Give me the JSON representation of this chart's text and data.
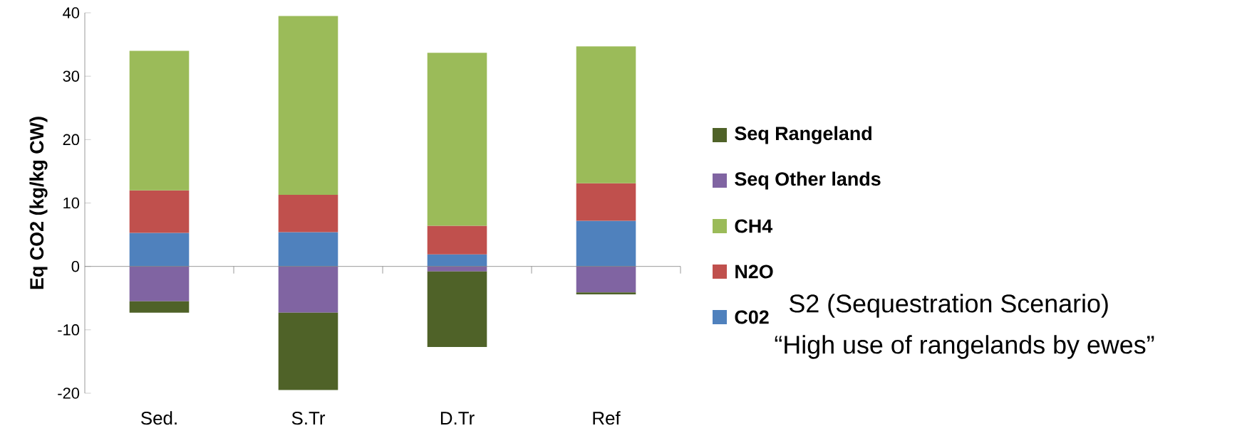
{
  "chart_data": {
    "type": "bar",
    "stacked": true,
    "ylabel": "Eq CO2 (kg/kg CW)",
    "categories": [
      "Sed.",
      "S.Tr",
      "D.Tr",
      "Ref"
    ],
    "series": [
      {
        "name": "C02",
        "color": "#4f81bd",
        "values": [
          5.3,
          5.4,
          1.9,
          7.2
        ]
      },
      {
        "name": "N2O",
        "color": "#c0504d",
        "values": [
          6.7,
          5.9,
          4.5,
          5.9
        ]
      },
      {
        "name": "CH4",
        "color": "#9bbb59",
        "values": [
          22.0,
          28.2,
          27.3,
          21.6
        ]
      },
      {
        "name": "Seq Other lands",
        "color": "#8064a2",
        "values": [
          -5.5,
          -7.3,
          -0.8,
          -4.1
        ]
      },
      {
        "name": "Seq Rangeland",
        "color": "#4f6228",
        "values": [
          -1.8,
          -12.2,
          -11.9,
          -0.3
        ]
      }
    ],
    "ylim": [
      -20,
      40
    ],
    "yticks": [
      -20,
      -10,
      0,
      10,
      20,
      30,
      40
    ],
    "legend": "right",
    "annotations": [
      "S2 (Sequestration Scenario)",
      "“High use of rangelands by ewes”"
    ]
  }
}
